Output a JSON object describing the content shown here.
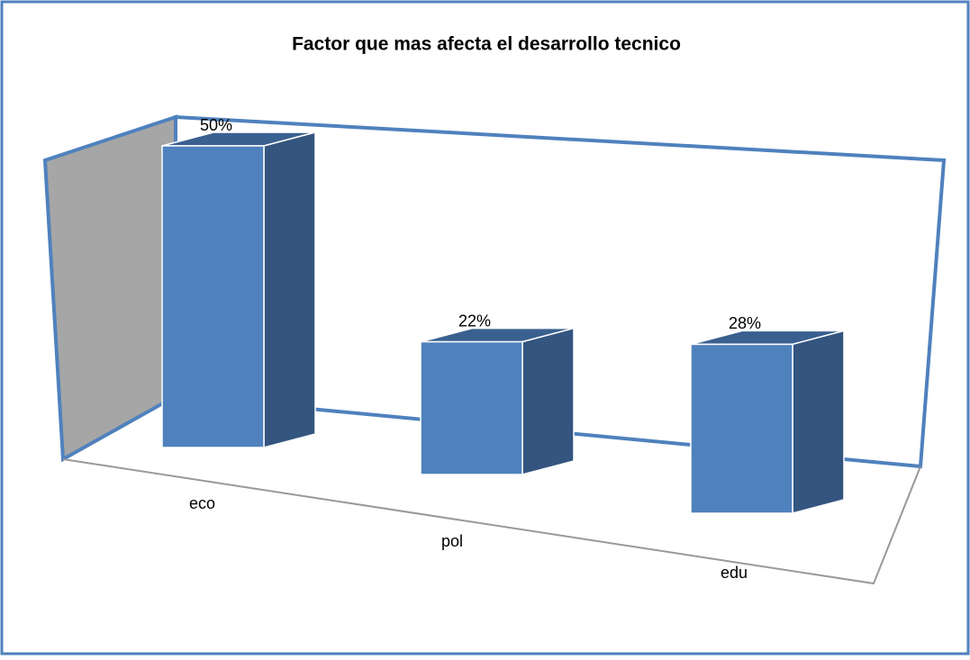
{
  "chart_data": {
    "type": "bar3d",
    "title": "Factor que mas afecta el desarrollo tecnico",
    "categories": [
      "eco",
      "pol",
      "edu"
    ],
    "values": [
      50,
      22,
      28
    ],
    "value_labels": [
      "50%",
      "22%",
      "28%"
    ],
    "color": "#4f81bd"
  }
}
